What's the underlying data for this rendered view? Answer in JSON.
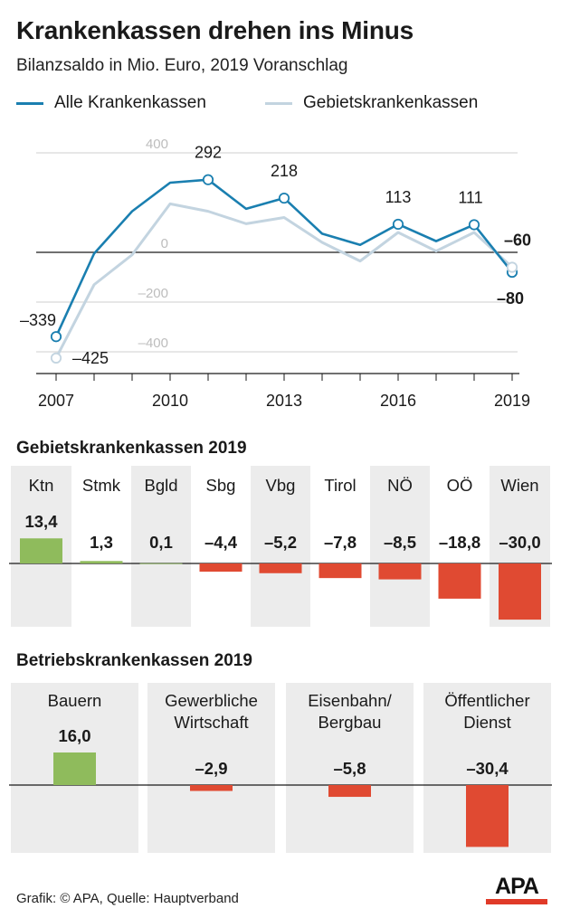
{
  "title": "Krankenkassen drehen ins Minus",
  "subtitle": "Bilanzsaldo in Mio. Euro, 2019 Voranschlag",
  "legend": [
    {
      "label": "Alle Krankenkassen",
      "color": "#1a7fb0"
    },
    {
      "label": "Gebietskrankenkassen",
      "color": "#c3d4e0"
    }
  ],
  "colors": {
    "positive": "#8fbb5c",
    "negative": "#e04a32",
    "panel": "#ececec",
    "grid": "#cfcfcf",
    "axis": "#1a1a1a",
    "title_red": "#e03a28"
  },
  "chart_data": [
    {
      "type": "line",
      "title": "Krankenkassen drehen ins Minus",
      "subtitle": "Bilanzsaldo in Mio. Euro, 2019 Voranschlag",
      "x": [
        2007,
        2008,
        2009,
        2010,
        2011,
        2012,
        2013,
        2014,
        2015,
        2016,
        2017,
        2018,
        2019
      ],
      "xticks": [
        "2007",
        "2010",
        "2013",
        "2016",
        "2019"
      ],
      "ylim": [
        -480,
        440
      ],
      "yticks": [
        400,
        0,
        -200,
        -400
      ],
      "ytick_labels": [
        "400",
        "0",
        "–200",
        "–400"
      ],
      "series": [
        {
          "name": "Gebietskrankenkassen",
          "color": "#c3d4e0",
          "values": [
            -425,
            -130,
            -10,
            195,
            165,
            115,
            140,
            40,
            -35,
            80,
            5,
            80,
            -60
          ]
        },
        {
          "name": "Alle Krankenkassen",
          "color": "#1a7fb0",
          "values": [
            -339,
            -5,
            165,
            280,
            292,
            175,
            218,
            75,
            30,
            113,
            45,
            111,
            -80
          ]
        }
      ],
      "annotations": [
        {
          "series": "Alle Krankenkassen",
          "x": 2007,
          "label": "–339",
          "bold": false,
          "marker": true
        },
        {
          "series": "Alle Krankenkassen",
          "x": 2011,
          "label": "292",
          "bold": false,
          "marker": true
        },
        {
          "series": "Alle Krankenkassen",
          "x": 2013,
          "label": "218",
          "bold": false,
          "marker": true
        },
        {
          "series": "Alle Krankenkassen",
          "x": 2016,
          "label": "113",
          "bold": false,
          "marker": true
        },
        {
          "series": "Alle Krankenkassen",
          "x": 2018,
          "label": "111",
          "bold": false,
          "marker": true
        },
        {
          "series": "Alle Krankenkassen",
          "x": 2019,
          "label": "–80",
          "bold": true,
          "marker": true
        },
        {
          "series": "Gebietskrankenkassen",
          "x": 2007,
          "label": "–425",
          "bold": false,
          "marker": true
        },
        {
          "series": "Gebietskrankenkassen",
          "x": 2019,
          "label": "–60",
          "bold": true,
          "marker": true
        }
      ]
    },
    {
      "type": "bar",
      "title": "Gebietskrankenkassen 2019",
      "categories": [
        "Ktn",
        "Stmk",
        "Bgld",
        "Sbg",
        "Vbg",
        "Tirol",
        "NÖ",
        "OÖ",
        "Wien"
      ],
      "values": [
        13.4,
        1.3,
        0.1,
        -4.4,
        -5.2,
        -7.8,
        -8.5,
        -18.8,
        -30.0
      ],
      "value_labels": [
        "13,4",
        "1,3",
        "0,1",
        "–4,4",
        "–5,2",
        "–7,8",
        "–8,5",
        "–18,8",
        "–30,0"
      ],
      "shaded": [
        true,
        false,
        true,
        false,
        true,
        false,
        true,
        false,
        true
      ],
      "ylim": [
        -36,
        18
      ]
    },
    {
      "type": "bar",
      "title": "Betriebskrankenkassen 2019",
      "categories": [
        "Bauern",
        "Gewerbliche Wirtschaft",
        "Eisenbahn/ Bergbau",
        "Öffentlicher Dienst"
      ],
      "value_labels": [
        "16,0",
        "–2,9",
        "–5,8",
        "–30,4"
      ],
      "values": [
        16.0,
        -2.9,
        -5.8,
        -30.4
      ],
      "ylim": [
        -36,
        18
      ]
    }
  ],
  "footer": {
    "credit": "Grafik: © APA, Quelle: Hauptverband",
    "logo": "APA"
  }
}
